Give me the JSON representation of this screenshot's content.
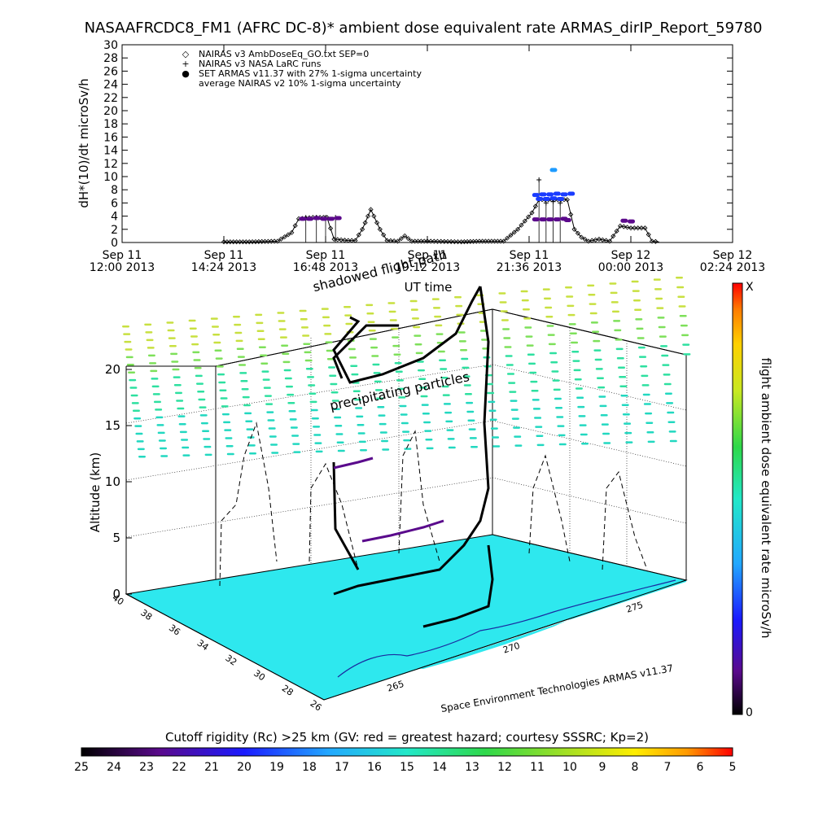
{
  "chart_data": [
    {
      "type": "scatter",
      "title": "NASAAFRCDC8_FM1 (AFRC DC-8)* ambient dose equivalent rate ARMAS_dirIP_Report_59780",
      "ylabel": "dH*(10)/dt microSv/h",
      "xlabel": "UT time",
      "ylim": [
        0,
        30
      ],
      "yticks": [
        "0",
        "2",
        "4",
        "6",
        "8",
        "10",
        "12",
        "14",
        "16",
        "18",
        "20",
        "22",
        "24",
        "26",
        "28",
        "30"
      ],
      "xticks": [
        {
          "day": "Sep 11",
          "time": "12:00 2013"
        },
        {
          "day": "Sep 11",
          "time": "14:24 2013"
        },
        {
          "day": "Sep 11",
          "time": "16:48 2013"
        },
        {
          "day": "Sep 11",
          "time": "19:12 2013"
        },
        {
          "day": "Sep 11",
          "time": "21:36 2013"
        },
        {
          "day": "Sep 12",
          "time": "00:00 2013"
        },
        {
          "day": "Sep 12",
          "time": "02:24 2013"
        }
      ],
      "legend_position": "top-left",
      "legend": [
        {
          "symbol": "◇",
          "label": "NAIRAS v3 AmbDoseEq_GO.txt SEP=0"
        },
        {
          "symbol": "+",
          "label": "NAIRAS v3 NASA LaRC runs"
        },
        {
          "symbol": "●",
          "label": "SET ARMAS v11.37 with 27% 1-sigma uncertainty"
        },
        {
          "symbol": "",
          "label": "average NAIRAS v2 10% 1-sigma uncertainty"
        }
      ],
      "series": [
        {
          "name": "NAIRAS v3 AmbDoseEq_GO.txt SEP=0",
          "marker": "diamond",
          "color": "#000000",
          "points": [
            [
              "14:24",
              0.1
            ],
            [
              "15:00",
              0.1
            ],
            [
              "15:40",
              0.2
            ],
            [
              "16:00",
              1.5
            ],
            [
              "16:10",
              3.6
            ],
            [
              "16:30",
              3.8
            ],
            [
              "16:50",
              3.8
            ],
            [
              "17:00",
              0.5
            ],
            [
              "17:20",
              0.3
            ],
            [
              "17:30",
              0.3
            ],
            [
              "17:40",
              2.0
            ],
            [
              "17:52",
              5.0
            ],
            [
              "18:05",
              2.0
            ],
            [
              "18:15",
              0.3
            ],
            [
              "18:30",
              0.2
            ],
            [
              "18:40",
              1.0
            ],
            [
              "18:50",
              0.2
            ],
            [
              "19:12",
              0.2
            ],
            [
              "20:00",
              0.1
            ],
            [
              "20:30",
              0.2
            ],
            [
              "21:00",
              0.2
            ],
            [
              "21:20",
              2.0
            ],
            [
              "21:40",
              4.5
            ],
            [
              "21:50",
              6.5
            ],
            [
              "22:30",
              6.5
            ],
            [
              "22:40",
              2.0
            ],
            [
              "22:50",
              0.8
            ],
            [
              "23:00",
              0.2
            ],
            [
              "23:15",
              0.5
            ],
            [
              "23:30",
              0.2
            ],
            [
              "23:45",
              2.5
            ],
            [
              "00:00",
              2.2
            ],
            [
              "00:20",
              2.2
            ],
            [
              "00:30",
              0.2
            ],
            [
              "00:40",
              0.1
            ]
          ]
        },
        {
          "name": "NAIRAS v3 NASA LaRC runs",
          "marker": "plus",
          "color": "#000000",
          "points": [
            [
              "16:20",
              3.8
            ],
            [
              "16:35",
              3.8
            ],
            [
              "16:48",
              3.8
            ],
            [
              "17:02",
              3.8
            ],
            [
              "21:50",
              9.5
            ],
            [
              "22:00",
              6.0
            ],
            [
              "22:10",
              6.2
            ],
            [
              "22:20",
              6.0
            ]
          ]
        },
        {
          "name": "SET ARMAS v11.37 with 27% 1-sigma uncertainty",
          "marker": "dot",
          "colors": [
            "#5c0a8c",
            "#1a3cff",
            "#1e9bff"
          ],
          "points": [
            [
              "16:15",
              3.6
            ],
            [
              "16:25",
              3.6
            ],
            [
              "16:35",
              3.7
            ],
            [
              "16:45",
              3.6
            ],
            [
              "16:55",
              3.6
            ],
            [
              "17:05",
              3.7
            ],
            [
              "21:45",
              3.5
            ],
            [
              "21:55",
              3.5
            ],
            [
              "22:05",
              3.5
            ],
            [
              "22:15",
              3.5
            ],
            [
              "22:25",
              3.6
            ],
            [
              "21:45",
              7.2
            ],
            [
              "21:55",
              7.3
            ],
            [
              "22:05",
              7.3
            ],
            [
              "22:15",
              7.4
            ],
            [
              "22:25",
              7.3
            ],
            [
              "22:35",
              7.4
            ],
            [
              "21:50",
              6.6
            ],
            [
              "22:00",
              6.6
            ],
            [
              "22:10",
              6.7
            ],
            [
              "22:20",
              6.6
            ],
            [
              "22:10",
              11.0
            ],
            [
              "22:30",
              3.4
            ],
            [
              "23:50",
              3.3
            ],
            [
              "00:00",
              3.2
            ]
          ]
        }
      ]
    },
    {
      "type": "scatter",
      "title": "",
      "zlabel": "Altitude (km)",
      "zticks": [
        "0",
        "5",
        "10",
        "15",
        "20"
      ],
      "latitude_ticks": [
        "40",
        "38",
        "36",
        "34",
        "32",
        "30",
        "28",
        "26"
      ],
      "longitude_ticks": [
        "265",
        "270",
        "275"
      ],
      "annotations": [
        "shadowed flight path",
        "precipitating particles"
      ],
      "credit": "Space Environment Technologies ARMAS v11.37",
      "colorbar": {
        "label": "flight ambient dose equivalent rate microSv/h",
        "top": "X",
        "bottom": "0"
      }
    },
    {
      "type": "heatmap",
      "title": "Cutoff rigidity (Rc) >25 km (GV: red = greatest hazard; courtesy SSSRC; Kp=2)",
      "ticks": [
        "25",
        "24",
        "23",
        "22",
        "21",
        "20",
        "19",
        "18",
        "17",
        "16",
        "15",
        "14",
        "13",
        "12",
        "11",
        "10",
        "9",
        "8",
        "7",
        "6",
        "5"
      ]
    }
  ]
}
